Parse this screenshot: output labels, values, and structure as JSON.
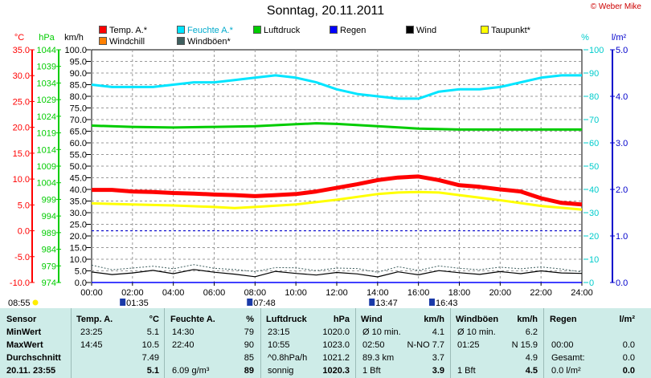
{
  "title": "Sonntag, 20.11.2011",
  "copyright": "© Weber Mike",
  "units": {
    "temp": "°C",
    "pressure": "hPa",
    "wind": "km/h",
    "humidity": "%",
    "rain": "l/m²"
  },
  "legend": [
    {
      "label": "Temp. A.*",
      "color": "#ff0000"
    },
    {
      "label": "Feuchte A.*",
      "color": "#00e5ff"
    },
    {
      "label": "Luftdruck",
      "color": "#00cc00"
    },
    {
      "label": "Regen",
      "color": "#0000ff"
    },
    {
      "label": "Wind",
      "color": "#000000"
    },
    {
      "label": "Taupunkt*",
      "color": "#ffff00"
    },
    {
      "label": "Windchill",
      "color": "#ff8000"
    },
    {
      "label": "Windböen*",
      "color": "#406060"
    }
  ],
  "colors": {
    "temp_axis": "#ff0000",
    "pressure_axis": "#00cc00",
    "humidity_axis": "#00cccc",
    "rain_axis": "#0000cc",
    "table_bg": "#ceece8"
  },
  "chart_data": {
    "type": "line",
    "title": "Sonntag, 20.11.2011",
    "x_ticks": [
      "00:00",
      "02:00",
      "04:00",
      "06:00",
      "08:00",
      "10:00",
      "12:00",
      "14:00",
      "16:00",
      "18:00",
      "20:00",
      "22:00",
      "24:00"
    ],
    "axes": {
      "temp": {
        "label": "°C",
        "range": [
          -10,
          35
        ],
        "ticks": [
          "35.0",
          "30.0",
          "25.0",
          "20.0",
          "15.0",
          "10.0",
          "5.0",
          "0.0",
          "-5.0",
          "-10.0"
        ]
      },
      "pressure": {
        "label": "hPa",
        "range": [
          974,
          1044
        ],
        "ticks": [
          "1044",
          "1039",
          "1034",
          "1029",
          "1024",
          "1019",
          "1014",
          "1009",
          "1004",
          "999",
          "994",
          "989",
          "984",
          "979",
          "974"
        ]
      },
      "wind": {
        "label": "km/h",
        "range": [
          0,
          100
        ],
        "ticks": [
          "100.0",
          "95.0",
          "90.0",
          "85.0",
          "80.0",
          "75.0",
          "70.0",
          "65.0",
          "60.0",
          "55.0",
          "50.0",
          "45.0",
          "40.0",
          "35.0",
          "30.0",
          "25.0",
          "20.0",
          "15.0",
          "10.0",
          "5.0",
          "0.0"
        ]
      },
      "humidity": {
        "label": "%",
        "range": [
          0,
          100
        ],
        "ticks": [
          "100",
          "90",
          "80",
          "70",
          "60",
          "50",
          "40",
          "30",
          "20",
          "10",
          "0"
        ]
      },
      "rain": {
        "label": "l/m²",
        "range": [
          0,
          5
        ],
        "ticks": [
          "5.0",
          "4.0",
          "3.0",
          "2.0",
          "1.0",
          "0.0"
        ]
      }
    },
    "series": [
      {
        "name": "Temp. A.*",
        "axis": "temp",
        "color": "#ff0000",
        "x": [
          0,
          1,
          2,
          3,
          4,
          5,
          6,
          7,
          8,
          9,
          10,
          11,
          12,
          13,
          14,
          15,
          16,
          17,
          18,
          19,
          20,
          21,
          22,
          23,
          24
        ],
        "y": [
          7.9,
          7.9,
          7.6,
          7.5,
          7.3,
          7.2,
          7.0,
          6.9,
          6.7,
          6.9,
          7.1,
          7.6,
          8.3,
          9.0,
          9.8,
          10.3,
          10.5,
          9.8,
          8.8,
          8.5,
          8.0,
          7.6,
          6.3,
          5.4,
          5.1
        ]
      },
      {
        "name": "Feuchte A.*",
        "axis": "humidity",
        "color": "#00e5ff",
        "x": [
          0,
          1,
          2,
          3,
          4,
          5,
          6,
          7,
          8,
          9,
          10,
          11,
          12,
          13,
          14,
          15,
          16,
          17,
          18,
          19,
          20,
          21,
          22,
          23,
          24
        ],
        "y": [
          85,
          84,
          84,
          84,
          85,
          86,
          86,
          87,
          88,
          89,
          88,
          86,
          83,
          81,
          80,
          79,
          79,
          82,
          83,
          83,
          84,
          86,
          88,
          89,
          89
        ]
      },
      {
        "name": "Luftdruck",
        "axis": "pressure",
        "color": "#00cc00",
        "x": [
          0,
          2,
          4,
          6,
          8,
          10,
          11,
          12,
          14,
          16,
          18,
          20,
          22,
          24
        ],
        "y": [
          1021.2,
          1020.8,
          1020.6,
          1020.8,
          1021.0,
          1021.6,
          1021.9,
          1021.7,
          1021.0,
          1020.3,
          1020.0,
          1020.0,
          1020.0,
          1020.0
        ]
      },
      {
        "name": "Taupunkt*",
        "axis": "temp",
        "color": "#ffff00",
        "x": [
          0,
          2,
          4,
          6,
          7,
          8,
          10,
          12,
          14,
          15,
          16,
          17,
          18,
          20,
          22,
          24
        ],
        "y": [
          5.3,
          5.1,
          4.9,
          4.6,
          4.4,
          4.6,
          5.1,
          6.0,
          7.1,
          7.4,
          7.5,
          7.4,
          6.9,
          5.9,
          4.8,
          4.1
        ]
      },
      {
        "name": "Wind",
        "axis": "wind",
        "color": "#000000",
        "x": [
          0,
          1,
          2,
          3,
          4,
          5,
          6,
          7,
          8,
          9,
          10,
          11,
          12,
          13,
          14,
          15,
          16,
          17,
          18,
          19,
          20,
          21,
          22,
          23,
          24
        ],
        "y": [
          4.5,
          3.4,
          4.1,
          5.2,
          3.8,
          5.6,
          4.4,
          3.6,
          2.5,
          4.8,
          3.9,
          3.2,
          4.3,
          3.7,
          2.4,
          4.6,
          3.3,
          5.1,
          4.2,
          3.5,
          4.7,
          3.8,
          5.0,
          4.1,
          3.9
        ]
      },
      {
        "name": "Windböen*",
        "axis": "wind",
        "color": "#406060",
        "x": [
          0,
          1,
          2,
          3,
          4,
          5,
          6,
          7,
          8,
          9,
          10,
          11,
          12,
          13,
          14,
          15,
          16,
          17,
          18,
          19,
          20,
          21,
          22,
          23,
          24
        ],
        "y": [
          7.5,
          5.5,
          6.2,
          7.0,
          5.9,
          7.7,
          6.1,
          5.6,
          4.7,
          6.4,
          6.3,
          5.1,
          6.2,
          6.0,
          4.4,
          6.8,
          5.2,
          7.1,
          6.1,
          5.5,
          6.6,
          5.9,
          6.7,
          5.8,
          4.5
        ]
      },
      {
        "name": "Regen",
        "axis": "rain",
        "color": "#0000ff",
        "x": [
          0,
          24
        ],
        "y": [
          0,
          0
        ]
      }
    ],
    "sun_markers": [
      {
        "label": "08:55",
        "hour": 0
      },
      {
        "label": "01:35",
        "hour": 1.58
      },
      {
        "label": "07:48",
        "hour": 7.8
      },
      {
        "label": "13:47",
        "hour": 13.78
      },
      {
        "label": "16:43",
        "hour": 16.72
      }
    ],
    "grid": true
  },
  "table": {
    "headers": {
      "sensor": "Sensor",
      "temp": "Temp. A.",
      "temp_unit": "°C",
      "hum": "Feuchte A.",
      "hum_unit": "%",
      "press": "Luftdruck",
      "press_unit": "hPa",
      "wind": "Wind",
      "wind_unit": "km/h",
      "gust": "Windböen",
      "gust_unit": "km/h",
      "rain": "Regen",
      "rain_unit": "l/m²"
    },
    "rows": [
      {
        "label": "MinWert",
        "temp_t": "23:25",
        "temp_v": "5.1",
        "hum_t": "14:30",
        "hum_v": "79",
        "press_t": "23:15",
        "press_v": "1020.0",
        "wind_a": "Ø 10 min.",
        "wind_v": "4.1",
        "gust_a": "Ø 10 min.",
        "gust_v": "6.2",
        "rain_a": "",
        "rain_v": ""
      },
      {
        "label": "MaxWert",
        "temp_t": "14:45",
        "temp_v": "10.5",
        "hum_t": "22:40",
        "hum_v": "90",
        "press_t": "10:55",
        "press_v": "1023.0",
        "wind_a": "02:50",
        "wind_b": "N-NO 7.7",
        "gust_a": "01:25",
        "gust_b": "N 15.9",
        "rain_a": "00:00",
        "rain_v": "0.0"
      },
      {
        "label": "Durchschnitt",
        "temp_t": "",
        "temp_v": "7.49",
        "hum_t": "",
        "hum_v": "85",
        "press_t": "^0.8hPa/h",
        "press_v": "1021.2",
        "wind_a": "89.3 km",
        "wind_v": "3.7",
        "gust_a": "",
        "gust_v": "4.9",
        "rain_a": "Gesamt:",
        "rain_v": "0.0"
      },
      {
        "label": "20.11.  23:55",
        "temp_t": "",
        "temp_v": "5.1",
        "hum_t": "6.09 g/m³",
        "hum_v": "89",
        "press_t": "sonnig",
        "press_v": "1020.3",
        "wind_a": "1 Bft",
        "wind_v": "3.9",
        "gust_a": "1 Bft",
        "gust_v": "4.5",
        "rain_a": "0.0 l/m²",
        "rain_v": "0.0"
      }
    ]
  }
}
